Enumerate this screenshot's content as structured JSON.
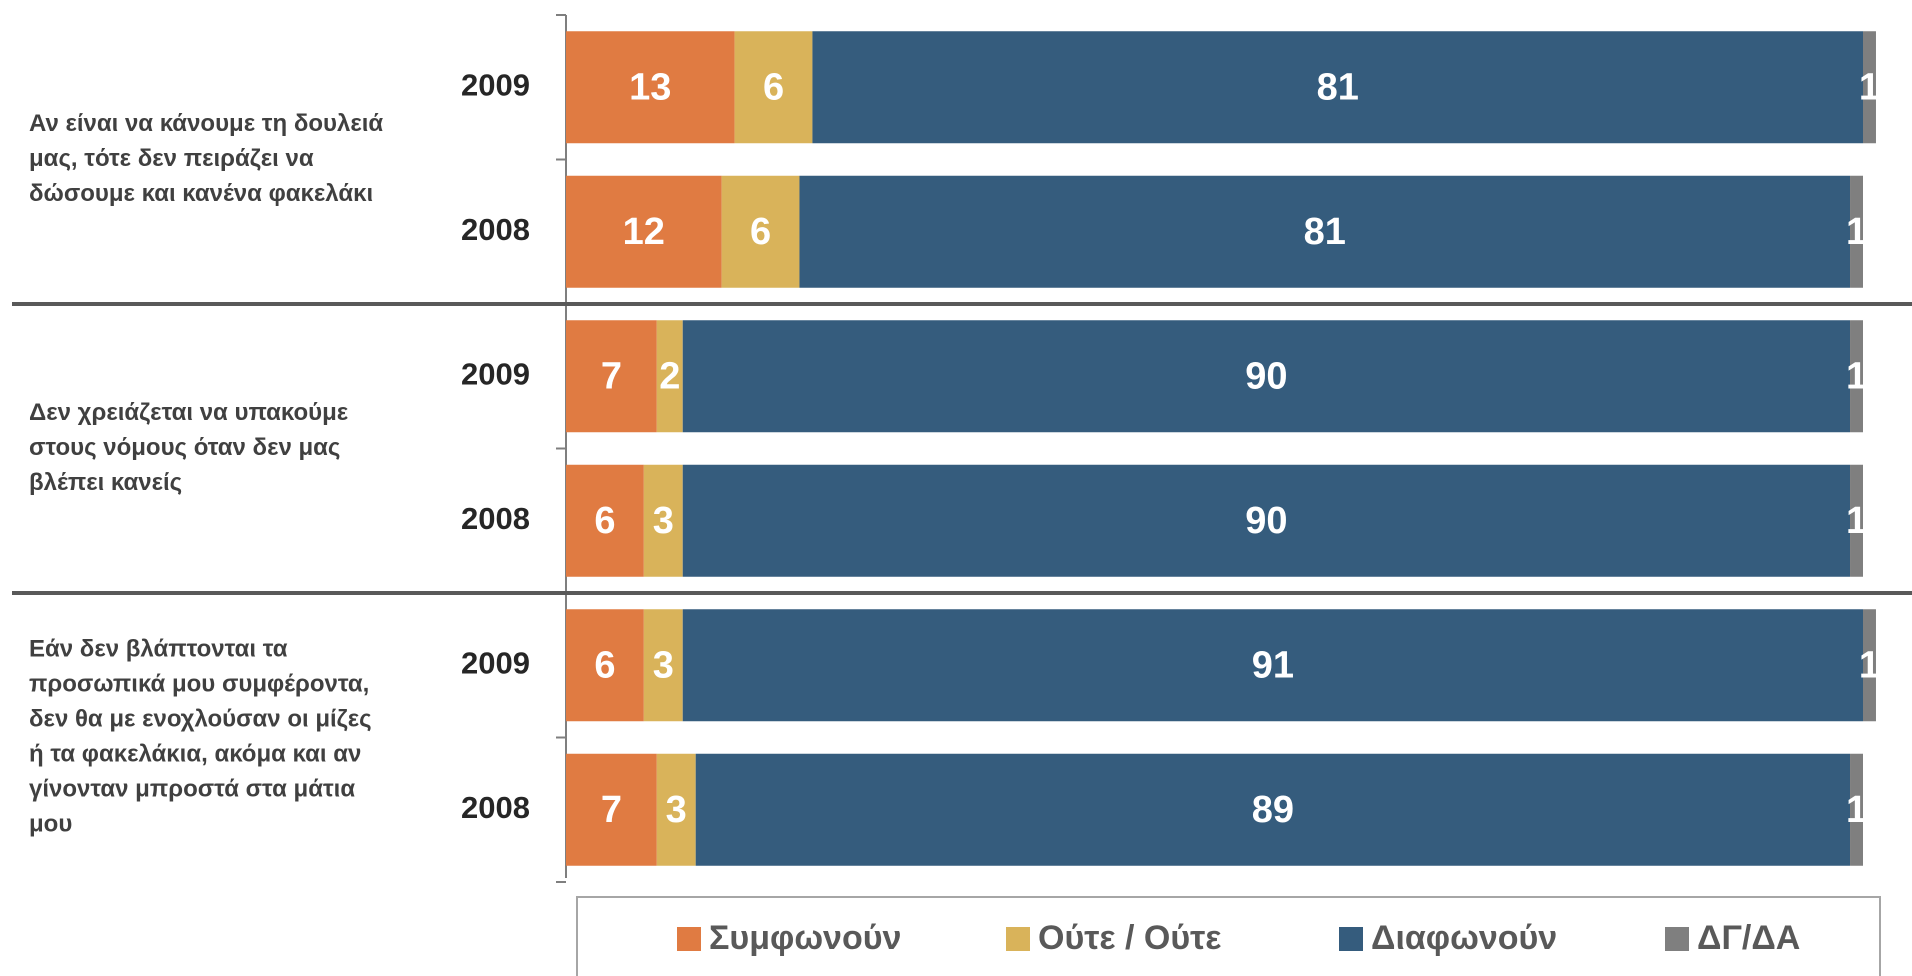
{
  "chart_data": {
    "type": "stacked_bar_h",
    "groups": [
      [
        "Αν είναι να κάνουμε τη δουλειά",
        "μας, τότε δεν πειράζει να",
        "δώσουμε και κανένα φακελάκι"
      ],
      [
        "Δεν χρειάζεται να υπακούμε",
        "στους νόμους όταν δεν μας",
        "βλέπει κανείς"
      ],
      [
        "Εάν δεν βλάπτονται τα",
        "προσωπικά μου συμφέροντα,",
        "δεν θα με ενοχλούσαν οι μίζες",
        "ή τα φακελάκια, ακόμα και αν",
        "γίνονταν μπροστά στα μάτια",
        "μου"
      ]
    ],
    "categories": [
      "2009",
      "2008",
      "2009",
      "2008",
      "2009",
      "2008"
    ],
    "series": [
      {
        "name": "Συμφωνούν",
        "color": "#e07b42",
        "values": [
          13,
          12,
          7,
          6,
          6,
          7
        ]
      },
      {
        "name": "Ούτε / Ούτε",
        "color": "#d9b35a",
        "values": [
          6,
          6,
          2,
          3,
          3,
          3
        ]
      },
      {
        "name": "Διαφωνούν",
        "color": "#355c7d",
        "values": [
          81,
          81,
          90,
          90,
          91,
          89
        ]
      },
      {
        "name": "ΔΓ/ΔΑ",
        "color": "#7f7f7f",
        "values": [
          1,
          1,
          1,
          1,
          1,
          1
        ]
      }
    ],
    "legend": "bottom"
  }
}
